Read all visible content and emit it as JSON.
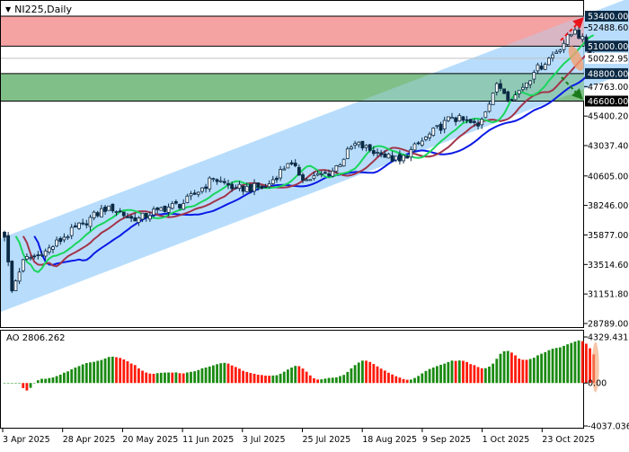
{
  "header": {
    "symbol_label": "NI225,Daily"
  },
  "indicator": {
    "label": "AO 2806.262"
  },
  "colors": {
    "resistance_zone": "#f4a3a3",
    "support_zone": "#80bf88",
    "channel": "#abd7fb",
    "ma_slow": "#0a1ae6",
    "ma_mid": "#a3344a",
    "ma_fast": "#19d65a",
    "ao_up": "#1a8a12",
    "ao_down": "#ff1a0a",
    "candle": "#0b2a45"
  },
  "chart_data": {
    "type": "candlestick",
    "symbol": "NI225",
    "timeframe": "Daily",
    "y_axis_ticks": [
      "52488.60",
      "47763.00",
      "45400.20",
      "43037.40",
      "40605.00",
      "38246.00",
      "35877.00",
      "33514.60",
      "31151.80",
      "28789.00"
    ],
    "ylim": [
      28789,
      53400
    ],
    "x_axis_ticks": [
      "3 Apr 2025",
      "28 Apr 2025",
      "20 May 2025",
      "11 Jun 2025",
      "3 Jul 2025",
      "25 Jul 2025",
      "18 Aug 2025",
      "9 Sep 2025",
      "1 Oct 2025",
      "23 Oct 2025"
    ],
    "price_levels": [
      {
        "label": "53400.00",
        "value": 53400,
        "style": "highlight"
      },
      {
        "label": "51000.00",
        "value": 51000,
        "style": "highlight"
      },
      {
        "label": "50022.95",
        "value": 50022.95,
        "style": "current"
      },
      {
        "label": "48800.00",
        "value": 48800,
        "style": "highlight"
      },
      {
        "label": "46600.00",
        "value": 46600,
        "style": "black"
      }
    ],
    "zones": [
      {
        "name": "resistance",
        "from": 51000,
        "to": 53400
      },
      {
        "name": "support",
        "from": 46600,
        "to": 48800
      }
    ],
    "close_path": [
      {
        "date": "2025-04-03",
        "close": 35700
      },
      {
        "date": "2025-04-07",
        "close": 31400
      },
      {
        "date": "2025-04-10",
        "close": 33900
      },
      {
        "date": "2025-04-17",
        "close": 34300
      },
      {
        "date": "2025-04-25",
        "close": 35700
      },
      {
        "date": "2025-05-02",
        "close": 36800
      },
      {
        "date": "2025-05-13",
        "close": 38200
      },
      {
        "date": "2025-05-22",
        "close": 37000
      },
      {
        "date": "2025-05-30",
        "close": 37900
      },
      {
        "date": "2025-06-10",
        "close": 38400
      },
      {
        "date": "2025-06-20",
        "close": 40400
      },
      {
        "date": "2025-06-30",
        "close": 39600
      },
      {
        "date": "2025-07-10",
        "close": 39700
      },
      {
        "date": "2025-07-18",
        "close": 41600
      },
      {
        "date": "2025-07-25",
        "close": 40300
      },
      {
        "date": "2025-08-05",
        "close": 41000
      },
      {
        "date": "2025-08-13",
        "close": 43200
      },
      {
        "date": "2025-08-22",
        "close": 42300
      },
      {
        "date": "2025-08-29",
        "close": 41800
      },
      {
        "date": "2025-09-08",
        "close": 43400
      },
      {
        "date": "2025-09-18",
        "close": 45300
      },
      {
        "date": "2025-09-29",
        "close": 44600
      },
      {
        "date": "2025-10-06",
        "close": 48000
      },
      {
        "date": "2025-10-10",
        "close": 46700
      },
      {
        "date": "2025-10-20",
        "close": 48900
      },
      {
        "date": "2025-10-27",
        "close": 50300
      },
      {
        "date": "2025-11-04",
        "close": 52300
      },
      {
        "date": "2025-11-07",
        "close": 51000
      },
      {
        "date": "2025-11-11",
        "close": 50023
      }
    ],
    "ao": {
      "value_label": "AO 2806.262",
      "ticks": [
        "4329.431",
        "0.00",
        "-4037.036"
      ],
      "ylim": [
        -4037.036,
        4329.431
      ]
    }
  }
}
